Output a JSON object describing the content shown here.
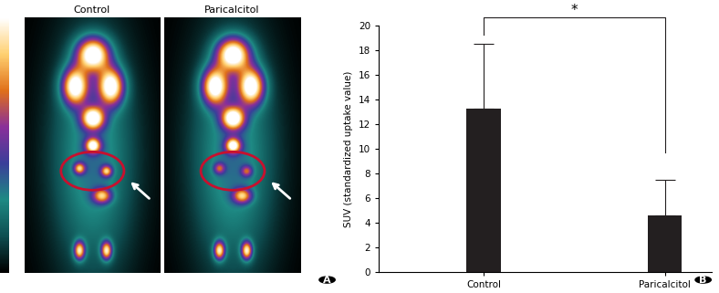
{
  "chart_data": {
    "type": "bar",
    "categories": [
      "Control",
      "Paricalcitol"
    ],
    "values": [
      13.3,
      4.6
    ],
    "errors": [
      5.2,
      2.9
    ],
    "color": "#231f20",
    "y_label": "SUV (standardized uptake value)",
    "ylim": [
      0,
      20
    ],
    "yticks": [
      0,
      2,
      4,
      6,
      8,
      10,
      12,
      14,
      16,
      18,
      20
    ],
    "annotations": [
      "*"
    ],
    "panel_label": "B"
  },
  "image_panel": {
    "panel_label": "A",
    "titles": [
      "Control",
      "Paricalcitol"
    ]
  }
}
